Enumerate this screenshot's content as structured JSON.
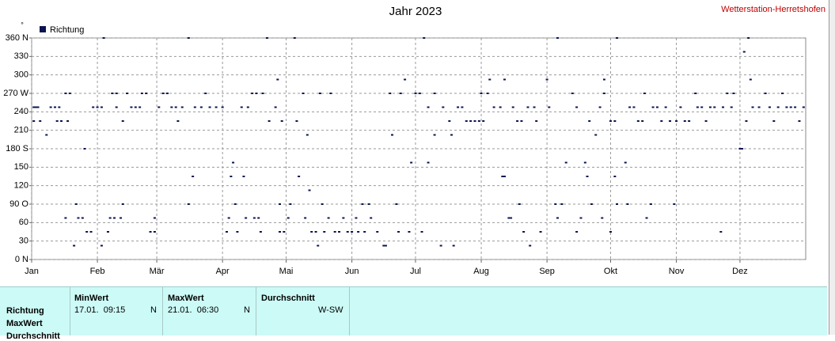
{
  "chart_data": {
    "type": "scatter",
    "title": "Jahr 2023",
    "station": "Wetterstation-Herretshofen",
    "y_label": "°",
    "legend_position": "top-left",
    "grid": true,
    "xlim": [
      0,
      365
    ],
    "xticks": [
      {
        "value": 0,
        "label": "Jan"
      },
      {
        "value": 31,
        "label": "Feb"
      },
      {
        "value": 59,
        "label": "Mär"
      },
      {
        "value": 90,
        "label": "Apr"
      },
      {
        "value": 120,
        "label": "Mai"
      },
      {
        "value": 151,
        "label": "Jun"
      },
      {
        "value": 181,
        "label": "Jul"
      },
      {
        "value": 212,
        "label": "Aug"
      },
      {
        "value": 243,
        "label": "Sep"
      },
      {
        "value": 273,
        "label": "Okt"
      },
      {
        "value": 304,
        "label": "Nov"
      },
      {
        "value": 334,
        "label": "Dez"
      }
    ],
    "ylim": [
      0,
      360
    ],
    "yticks": [
      {
        "value": 0,
        "label": "0 N"
      },
      30,
      60,
      {
        "value": 90,
        "label": "90 O"
      },
      120,
      150,
      {
        "value": 180,
        "label": "180 S"
      },
      210,
      240,
      {
        "value": 270,
        "label": "270 W"
      },
      300,
      330,
      {
        "value": 360,
        "label": "360 N"
      }
    ],
    "series": [
      {
        "name": "Richtung",
        "color": "#0a1450",
        "x": [
          1,
          2,
          3,
          1,
          4,
          7,
          9,
          11,
          13,
          12,
          14,
          16,
          18,
          17,
          16,
          20,
          21,
          22,
          24,
          25,
          26,
          28,
          29,
          31,
          33,
          34,
          33,
          36,
          37,
          39,
          38,
          40,
          40,
          42,
          43,
          43,
          45,
          47,
          49,
          51,
          52,
          54,
          56,
          58,
          58,
          60,
          62,
          64,
          66,
          68,
          69,
          71,
          74,
          74,
          76,
          77,
          80,
          82,
          84,
          87,
          90,
          92,
          93,
          95,
          94,
          96,
          97,
          100,
          101,
          99,
          102,
          104,
          106,
          105,
          107,
          108,
          109,
          111,
          112,
          115,
          116,
          117,
          118,
          119,
          117,
          121,
          122,
          124,
          125,
          126,
          128,
          130,
          131,
          132,
          134,
          129,
          135,
          136,
          137,
          138,
          140,
          141,
          143,
          145,
          147,
          149,
          151,
          153,
          154,
          156,
          157,
          159,
          160,
          163,
          166,
          167,
          169,
          170,
          172,
          173,
          174,
          176,
          178,
          179,
          181,
          183,
          185,
          184,
          187,
          187,
          190,
          190,
          193,
          194,
          197,
          198,
          199,
          201,
          203,
          205,
          207,
          209,
          211,
          212,
          213,
          215,
          216,
          218,
          221,
          222,
          223,
          223,
          225,
          226,
          227,
          229,
          230,
          232,
          231,
          235,
          234,
          237,
          238,
          240,
          243,
          244,
          247,
          248,
          248,
          250,
          252,
          255,
          257,
          257,
          259,
          261,
          262,
          263,
          264,
          266,
          268,
          269,
          270,
          270,
          273,
          273,
          275,
          275,
          276,
          276,
          280,
          281,
          282,
          284,
          286,
          288,
          289,
          290,
          292,
          293,
          295,
          297,
          299,
          301,
          303,
          304,
          306,
          308,
          310,
          313,
          314,
          316,
          318,
          320,
          322,
          325,
          326,
          328,
          330,
          331,
          334,
          335,
          336,
          337,
          338,
          339,
          340,
          343,
          346,
          348,
          350,
          352,
          354,
          356,
          358,
          360,
          362,
          364
        ],
        "values": [
          247.5,
          247.5,
          247.5,
          225,
          225,
          202.5,
          247.5,
          247.5,
          247.5,
          225,
          225,
          270,
          270,
          225,
          67.5,
          22.5,
          90,
          67.5,
          67.5,
          180,
          45,
          45,
          247.5,
          247.5,
          247.5,
          360,
          22.5,
          45,
          67.5,
          67.5,
          270,
          270,
          247.5,
          67.5,
          90,
          225,
          270,
          247.5,
          247.5,
          247.5,
          270,
          270,
          45,
          45,
          67.5,
          247.5,
          270,
          270,
          247.5,
          247.5,
          225,
          247.5,
          90,
          360,
          135,
          247.5,
          247.5,
          270,
          247.5,
          247.5,
          247.5,
          45,
          67.5,
          157.5,
          135,
          90,
          45,
          135,
          67.5,
          247.5,
          247.5,
          270,
          270,
          67.5,
          67.5,
          45,
          270,
          360,
          225,
          247.5,
          292.5,
          45,
          225,
          45,
          90,
          67.5,
          90,
          360,
          225,
          135,
          270,
          202.5,
          112.5,
          45,
          45,
          67.5,
          22.5,
          270,
          90,
          45,
          67.5,
          270,
          45,
          45,
          67.5,
          45,
          45,
          67.5,
          45,
          90,
          45,
          90,
          67.5,
          45,
          22.5,
          22.5,
          270,
          202.5,
          90,
          45,
          270,
          292.5,
          45,
          157.5,
          270,
          270,
          360,
          45,
          247.5,
          157.5,
          202.5,
          270,
          22.5,
          247.5,
          225,
          202.5,
          22.5,
          247.5,
          247.5,
          225,
          225,
          225,
          225,
          270,
          225,
          270,
          292.5,
          247.5,
          247.5,
          135,
          292.5,
          135,
          67.5,
          67.5,
          247.5,
          225,
          90,
          45,
          225,
          22.5,
          247.5,
          247.5,
          225,
          45,
          292.5,
          247.5,
          90,
          360,
          67.5,
          90,
          157.5,
          270,
          247.5,
          45,
          67.5,
          157.5,
          135,
          225,
          90,
          202.5,
          247.5,
          67.5,
          292.5,
          270,
          45,
          225,
          225,
          135,
          90,
          360,
          157.5,
          90,
          247.5,
          247.5,
          225,
          225,
          270,
          67.5,
          90,
          247.5,
          247.5,
          225,
          247.5,
          225,
          90,
          225,
          247.5,
          225,
          225,
          270,
          247.5,
          247.5,
          225,
          247.5,
          247.5,
          45,
          247.5,
          270,
          247.5,
          270,
          180,
          180,
          337.5,
          225,
          360,
          292.5,
          247.5,
          247.5,
          270,
          247.5,
          225,
          247.5,
          270,
          247.5,
          247.5,
          247.5,
          225,
          247.5
        ]
      }
    ]
  },
  "table": {
    "columns": [
      "MinWert",
      "MaxWert",
      "Durchschnitt"
    ],
    "row_labels": [
      "Richtung",
      "MaxWert",
      "Durchschnitt"
    ],
    "row": {
      "min_time": "17.01.  09:15",
      "min_dir": "N",
      "max_time": "21.01.  06:30",
      "max_dir": "N",
      "avg": "W-SW"
    }
  }
}
